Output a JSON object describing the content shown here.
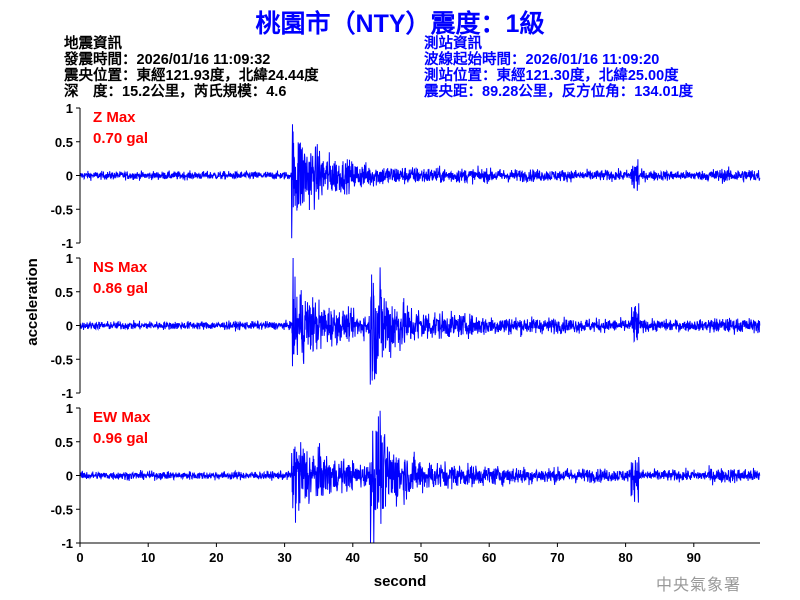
{
  "title": "桃園市（NTY）震度：1級",
  "earthquake_info": {
    "heading": "地震資訊",
    "origin_time": "發震時間：2026/01/16 11:09:32",
    "epicenter": "震央位置：東經121.93度，北緯24.44度",
    "depth_magnitude": "深　度：15.2公里，芮氏規模：4.6"
  },
  "station_info": {
    "heading": "測站資訊",
    "start_time": "波線起始時間：2026/01/16 11:09:20",
    "location": "測站位置：東經121.30度，北緯25.00度",
    "distance_azimuth": "震央距：89.28公里，反方位角：134.01度"
  },
  "watermark": "中央氣象署",
  "chart_data": {
    "type": "line",
    "xlabel": "second",
    "ylabel": "acceleration",
    "xlim": [
      0,
      100
    ],
    "ylim": [
      -1,
      1
    ],
    "x_ticks": [
      "0",
      "10",
      "20",
      "30",
      "40",
      "50",
      "60",
      "70",
      "80",
      "90"
    ],
    "y_ticks": [
      "1",
      "0.5",
      "0",
      "-0.5",
      "-1"
    ],
    "line_color": "#0000ff",
    "label_color": "#ff0000",
    "grid": false,
    "series": [
      {
        "name": "Z Max",
        "max_label": "0.70 gal",
        "peak": 0.7,
        "p_arrival": 31,
        "s_arrival": 31
      },
      {
        "name": "NS Max",
        "max_label": "0.86 gal",
        "peak": 0.86,
        "p_arrival": 31,
        "s_arrival": 44
      },
      {
        "name": "EW Max",
        "max_label": "0.96 gal",
        "peak": 0.96,
        "p_arrival": 31,
        "s_arrival": 44
      }
    ]
  }
}
